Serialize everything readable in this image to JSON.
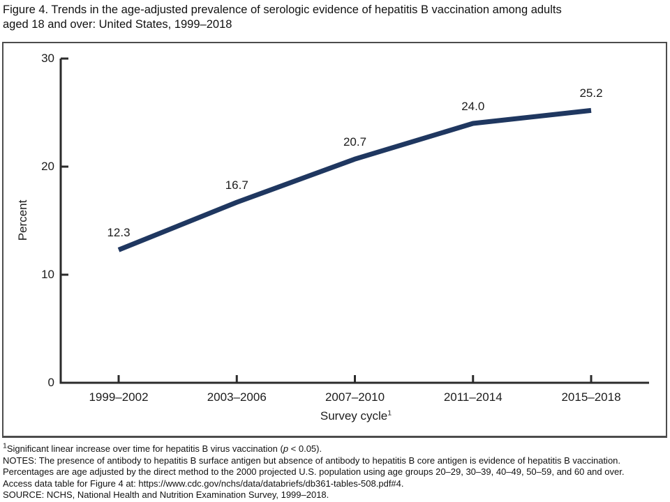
{
  "figure": {
    "title_line1": "Figure 4. Trends in the age-adjusted prevalence of serologic evidence of hepatitis B vaccination among adults",
    "title_line2": "aged 18 and over: United States, 1999–2018"
  },
  "chart_data": {
    "type": "line",
    "title": "Age-adjusted prevalence of serologic evidence of hepatitis B vaccination among adults aged 18 and over",
    "categories": [
      "1999–2002",
      "2003–2006",
      "2007–2010",
      "2011–2014",
      "2015–2018"
    ],
    "values": [
      12.3,
      16.7,
      20.7,
      24.0,
      25.2
    ],
    "data_labels": [
      "12.3",
      "16.7",
      "20.7",
      "24.0",
      "25.2"
    ],
    "xlabel": "Survey cycle",
    "xlabel_sup": "1",
    "ylabel": "Percent",
    "ylim": [
      0,
      30
    ],
    "yticks": [
      0,
      10,
      20,
      30
    ],
    "grid": false,
    "legend": false,
    "line_color": "#1f3760",
    "axis_color": "#2b2b2b"
  },
  "footnotes": {
    "line1_sup": "1",
    "line1_pre": "Significant linear increase over time for hepatitis B virus vaccination (",
    "line1_italic": "p",
    "line1_post": " < 0.05).",
    "line2": "NOTES: The presence of antibody to hepatitis B surface antigen but absence of antibody to hepatitis B core antigen is evidence of hepatitis B vaccination.",
    "line3": "Percentages are age adjusted by the direct method to the 2000 projected U.S. population using age groups 20–29, 30–39, 40–49, 50–59, and 60 and over.",
    "line4": "Access data table for Figure 4 at: https://www.cdc.gov/nchs/data/databriefs/db361-tables-508.pdf#4.",
    "line5": "SOURCE: NCHS, National Health and Nutrition Examination Survey, 1999–2018."
  }
}
